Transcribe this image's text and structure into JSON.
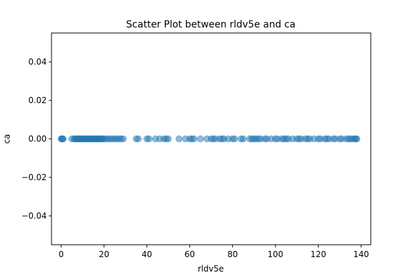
{
  "chart_data": {
    "type": "scatter",
    "title": "Scatter Plot between rldv5e and ca",
    "xlabel": "rldv5e",
    "ylabel": "ca",
    "xlim": [
      -4.5,
      144.5
    ],
    "ylim": [
      -0.055,
      0.055
    ],
    "xticks": [
      0,
      20,
      40,
      60,
      80,
      100,
      120,
      140
    ],
    "xtick_labels": [
      "0",
      "20",
      "40",
      "60",
      "80",
      "100",
      "120",
      "140"
    ],
    "yticks": [
      -0.04,
      -0.02,
      0.0,
      0.02,
      0.04
    ],
    "ytick_labels": [
      "−0.04",
      "−0.02",
      "0.00",
      "0.02",
      "0.04"
    ],
    "grid": false,
    "marker_color": "#1f77b4",
    "marker_alpha": 0.5,
    "series": [
      {
        "x": [
          0,
          0.3,
          0.6,
          1,
          5,
          6,
          6.5,
          7,
          7.5,
          8,
          8.5,
          9,
          9.5,
          10,
          10.5,
          11,
          11.5,
          12,
          12.5,
          13,
          13.5,
          14,
          14.5,
          15,
          15.5,
          16,
          16.5,
          17,
          17.5,
          18,
          18.5,
          19,
          19.5,
          20,
          21,
          22,
          23,
          24,
          25,
          26,
          27,
          28,
          29,
          35,
          36,
          40,
          41,
          44,
          46,
          48,
          49,
          50,
          55,
          58,
          60,
          61,
          62,
          65,
          68,
          70,
          71,
          72,
          74,
          75,
          76,
          78,
          80,
          81,
          84,
          85,
          88,
          89,
          90,
          91,
          92,
          93,
          95,
          96,
          98,
          100,
          101,
          103,
          104,
          105,
          106,
          108,
          110,
          111,
          112,
          114,
          115,
          116,
          118,
          120,
          121,
          123,
          124,
          125,
          127,
          128,
          130,
          131,
          133,
          134,
          135,
          136,
          137,
          137.5,
          138
        ],
        "y": [
          0,
          0,
          0,
          0,
          0,
          0,
          0,
          0,
          0,
          0,
          0,
          0,
          0,
          0,
          0,
          0,
          0,
          0,
          0,
          0,
          0,
          0,
          0,
          0,
          0,
          0,
          0,
          0,
          0,
          0,
          0,
          0,
          0,
          0,
          0,
          0,
          0,
          0,
          0,
          0,
          0,
          0,
          0,
          0,
          0,
          0,
          0,
          0,
          0,
          0,
          0,
          0,
          0,
          0,
          0,
          0,
          0,
          0,
          0,
          0,
          0,
          0,
          0,
          0,
          0,
          0,
          0,
          0,
          0,
          0,
          0,
          0,
          0,
          0,
          0,
          0,
          0,
          0,
          0,
          0,
          0,
          0,
          0,
          0,
          0,
          0,
          0,
          0,
          0,
          0,
          0,
          0,
          0,
          0,
          0,
          0,
          0,
          0,
          0,
          0,
          0,
          0,
          0,
          0,
          0,
          0,
          0,
          0,
          0
        ]
      }
    ]
  }
}
